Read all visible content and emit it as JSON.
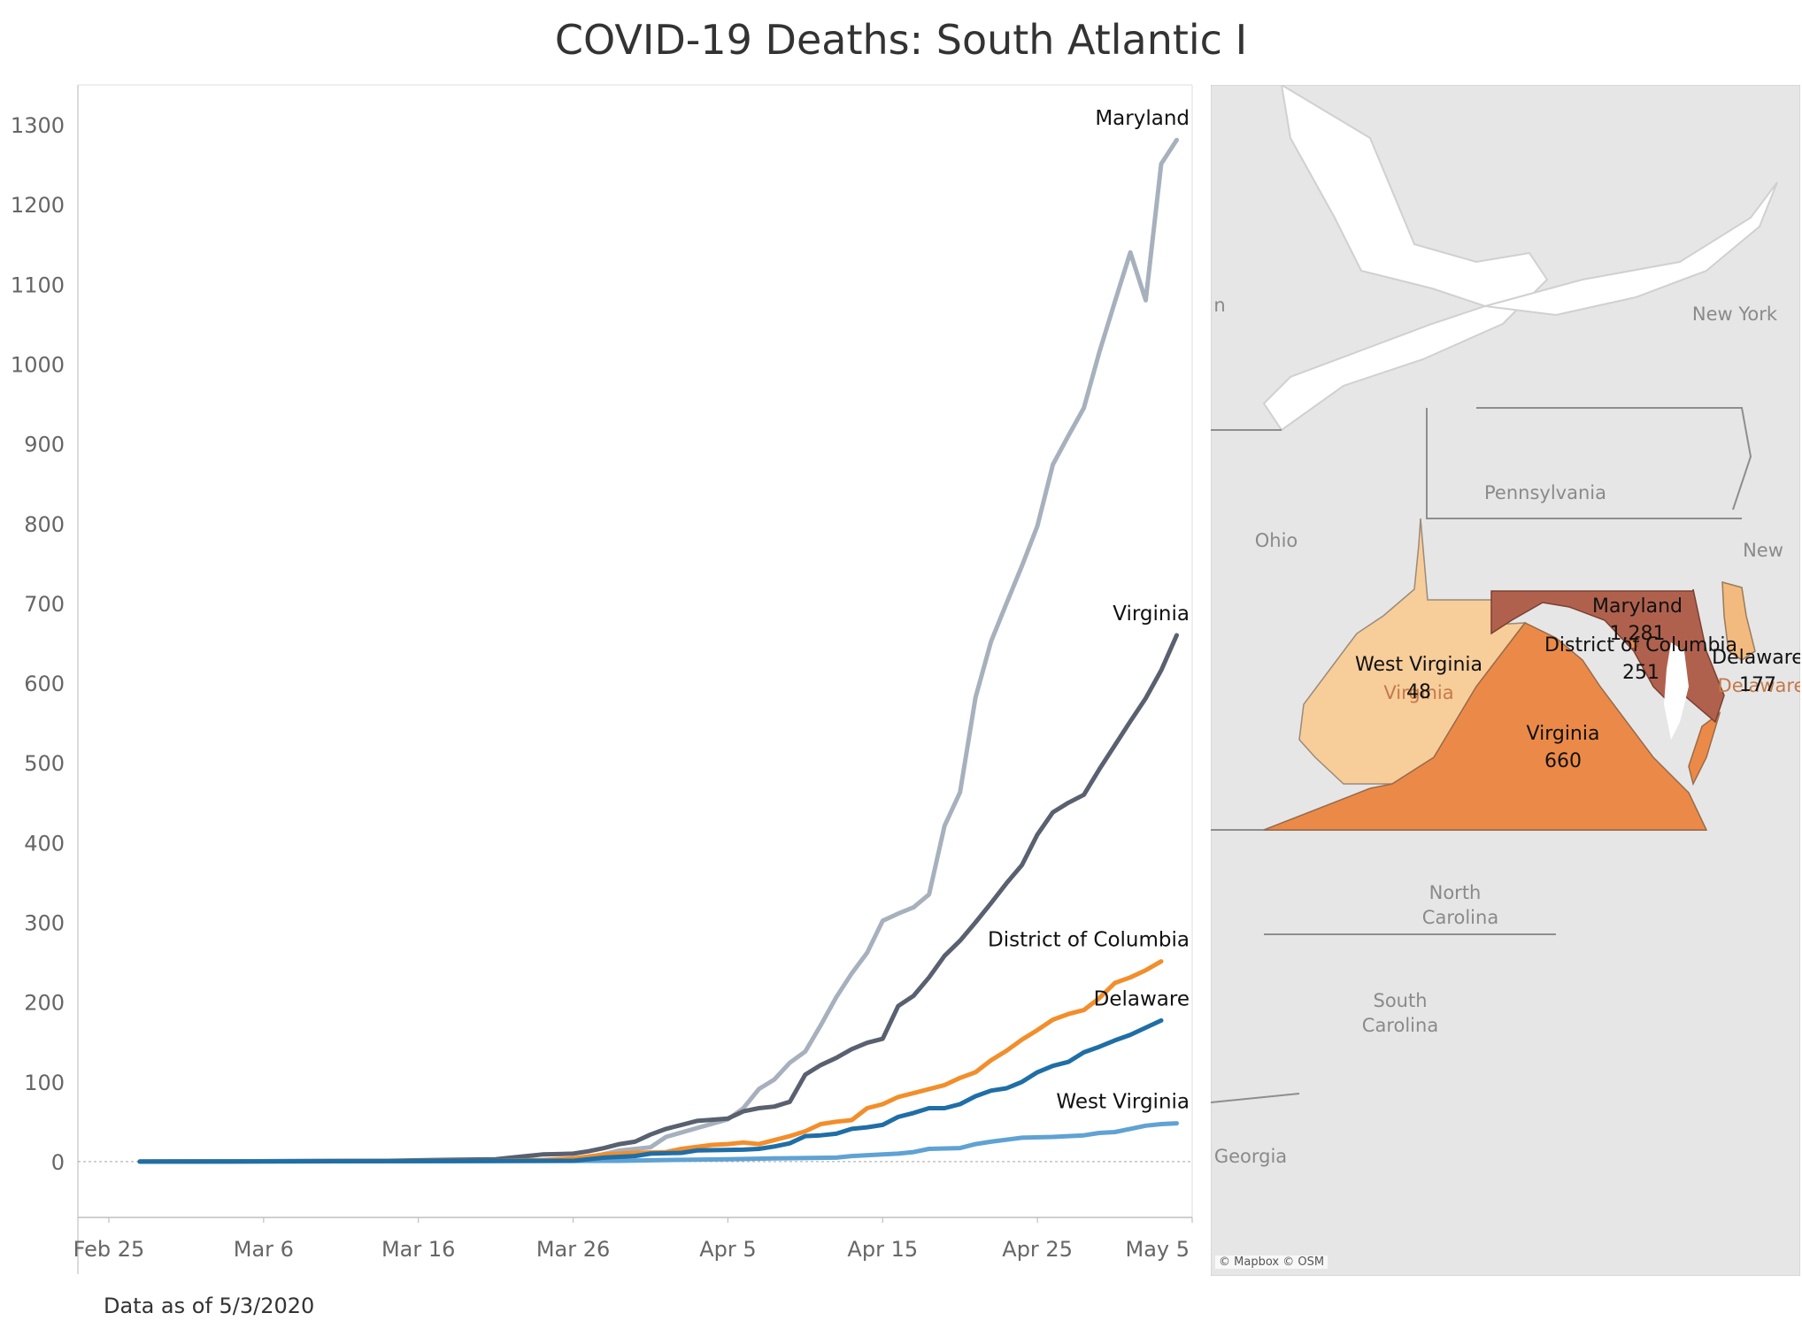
{
  "title": "COVID-19 Deaths: South Atlantic I",
  "footer": "Data as of 5/3/2020",
  "chart_data": [
    {
      "type": "line",
      "title": "",
      "xlabel": "",
      "ylabel": "",
      "x_tick_labels": [
        "Feb 25",
        "Mar 6",
        "Mar 16",
        "Mar 26",
        "Apr 5",
        "Apr 15",
        "Apr 25",
        "May 5"
      ],
      "y_ticks": [
        0,
        100,
        200,
        300,
        400,
        500,
        600,
        700,
        800,
        900,
        1000,
        1100,
        1200,
        1300
      ],
      "ylim": [
        -70,
        1350
      ],
      "xlim": [
        "2020-02-23",
        "2020-05-05"
      ],
      "zero_line": "dotted",
      "grid": false,
      "series": [
        {
          "name": "Maryland",
          "color": "#a7b0bd",
          "points": [
            [
              "2020-02-27",
              0
            ],
            [
              "2020-03-17",
              1
            ],
            [
              "2020-03-25",
              2
            ],
            [
              "2020-03-27",
              5
            ],
            [
              "2020-03-29",
              14
            ],
            [
              "2020-03-31",
              18
            ],
            [
              "2020-04-01",
              31
            ],
            [
              "2020-04-03",
              42
            ],
            [
              "2020-04-05",
              53
            ],
            [
              "2020-04-06",
              67
            ],
            [
              "2020-04-07",
              91
            ],
            [
              "2020-04-08",
              103
            ],
            [
              "2020-04-09",
              124
            ],
            [
              "2020-04-10",
              138
            ],
            [
              "2020-04-11",
              171
            ],
            [
              "2020-04-12",
              206
            ],
            [
              "2020-04-13",
              236
            ],
            [
              "2020-04-14",
              262
            ],
            [
              "2020-04-15",
              302
            ],
            [
              "2020-04-16",
              311
            ],
            [
              "2020-04-17",
              319
            ],
            [
              "2020-04-18",
              335
            ],
            [
              "2020-04-19",
              421
            ],
            [
              "2020-04-20",
              463
            ],
            [
              "2020-04-21",
              582
            ],
            [
              "2020-04-22",
              652
            ],
            [
              "2020-04-23",
              700
            ],
            [
              "2020-04-24",
              747
            ],
            [
              "2020-04-25",
              797
            ],
            [
              "2020-04-26",
              874
            ],
            [
              "2020-04-27",
              910
            ],
            [
              "2020-04-28",
              945
            ],
            [
              "2020-04-29",
              1015
            ],
            [
              "2020-04-30",
              1078
            ],
            [
              "2020-05-01",
              1140
            ],
            [
              "2020-05-02",
              1080
            ],
            [
              "2020-05-03",
              1251
            ],
            [
              "2020-05-04",
              1281
            ]
          ]
        },
        {
          "name": "Virginia",
          "color": "#59606f",
          "points": [
            [
              "2020-02-27",
              0
            ],
            [
              "2020-03-14",
              1
            ],
            [
              "2020-03-17",
              2
            ],
            [
              "2020-03-21",
              3
            ],
            [
              "2020-03-22",
              5
            ],
            [
              "2020-03-23",
              7
            ],
            [
              "2020-03-24",
              9
            ],
            [
              "2020-03-26",
              10
            ],
            [
              "2020-03-27",
              13
            ],
            [
              "2020-03-28",
              17
            ],
            [
              "2020-03-29",
              22
            ],
            [
              "2020-03-30",
              25
            ],
            [
              "2020-03-31",
              34
            ],
            [
              "2020-04-01",
              41
            ],
            [
              "2020-04-02",
              46
            ],
            [
              "2020-04-03",
              51
            ],
            [
              "2020-04-05",
              54
            ],
            [
              "2020-04-06",
              63
            ],
            [
              "2020-04-07",
              67
            ],
            [
              "2020-04-08",
              69
            ],
            [
              "2020-04-09",
              75
            ],
            [
              "2020-04-10",
              109
            ],
            [
              "2020-04-11",
              121
            ],
            [
              "2020-04-12",
              130
            ],
            [
              "2020-04-13",
              141
            ],
            [
              "2020-04-14",
              149
            ],
            [
              "2020-04-15",
              154
            ],
            [
              "2020-04-16",
              195
            ],
            [
              "2020-04-17",
              208
            ],
            [
              "2020-04-18",
              231
            ],
            [
              "2020-04-19",
              258
            ],
            [
              "2020-04-20",
              277
            ],
            [
              "2020-04-21",
              300
            ],
            [
              "2020-04-22",
              324
            ],
            [
              "2020-04-23",
              349
            ],
            [
              "2020-04-24",
              372
            ],
            [
              "2020-04-25",
              410
            ],
            [
              "2020-04-26",
              438
            ],
            [
              "2020-04-27",
              450
            ],
            [
              "2020-04-28",
              460
            ],
            [
              "2020-04-29",
              492
            ],
            [
              "2020-04-30",
              522
            ],
            [
              "2020-05-01",
              552
            ],
            [
              "2020-05-02",
              581
            ],
            [
              "2020-05-03",
              616
            ],
            [
              "2020-05-04",
              660
            ]
          ]
        },
        {
          "name": "District of Columbia",
          "color": "#f28e2b",
          "points": [
            [
              "2020-02-27",
              0
            ],
            [
              "2020-03-21",
              1
            ],
            [
              "2020-03-24",
              2
            ],
            [
              "2020-03-26",
              4
            ],
            [
              "2020-03-28",
              9
            ],
            [
              "2020-03-30",
              11
            ],
            [
              "2020-04-01",
              12
            ],
            [
              "2020-04-02",
              16
            ],
            [
              "2020-04-04",
              21
            ],
            [
              "2020-04-05",
              22
            ],
            [
              "2020-04-06",
              24
            ],
            [
              "2020-04-07",
              22
            ],
            [
              "2020-04-08",
              27
            ],
            [
              "2020-04-09",
              32
            ],
            [
              "2020-04-10",
              38
            ],
            [
              "2020-04-11",
              47
            ],
            [
              "2020-04-12",
              50
            ],
            [
              "2020-04-13",
              52
            ],
            [
              "2020-04-14",
              67
            ],
            [
              "2020-04-15",
              72
            ],
            [
              "2020-04-16",
              81
            ],
            [
              "2020-04-17",
              86
            ],
            [
              "2020-04-18",
              91
            ],
            [
              "2020-04-19",
              96
            ],
            [
              "2020-04-20",
              105
            ],
            [
              "2020-04-21",
              112
            ],
            [
              "2020-04-22",
              127
            ],
            [
              "2020-04-23",
              139
            ],
            [
              "2020-04-24",
              153
            ],
            [
              "2020-04-25",
              165
            ],
            [
              "2020-04-26",
              178
            ],
            [
              "2020-04-27",
              185
            ],
            [
              "2020-04-28",
              190
            ],
            [
              "2020-04-29",
              205
            ],
            [
              "2020-04-30",
              224
            ],
            [
              "2020-05-01",
              231
            ],
            [
              "2020-05-02",
              240
            ],
            [
              "2020-05-03",
              251
            ]
          ]
        },
        {
          "name": "Delaware",
          "color": "#1f6ea6",
          "points": [
            [
              "2020-02-27",
              0
            ],
            [
              "2020-03-26",
              1
            ],
            [
              "2020-03-28",
              5
            ],
            [
              "2020-03-30",
              7
            ],
            [
              "2020-03-31",
              10
            ],
            [
              "2020-04-02",
              11
            ],
            [
              "2020-04-03",
              14
            ],
            [
              "2020-04-06",
              15
            ],
            [
              "2020-04-07",
              16
            ],
            [
              "2020-04-08",
              19
            ],
            [
              "2020-04-09",
              23
            ],
            [
              "2020-04-10",
              32
            ],
            [
              "2020-04-11",
              33
            ],
            [
              "2020-04-12",
              35
            ],
            [
              "2020-04-13",
              41
            ],
            [
              "2020-04-14",
              43
            ],
            [
              "2020-04-15",
              46
            ],
            [
              "2020-04-16",
              56
            ],
            [
              "2020-04-17",
              61
            ],
            [
              "2020-04-18",
              67
            ],
            [
              "2020-04-19",
              67
            ],
            [
              "2020-04-20",
              72
            ],
            [
              "2020-04-21",
              82
            ],
            [
              "2020-04-22",
              89
            ],
            [
              "2020-04-23",
              92
            ],
            [
              "2020-04-24",
              100
            ],
            [
              "2020-04-25",
              112
            ],
            [
              "2020-04-26",
              120
            ],
            [
              "2020-04-27",
              125
            ],
            [
              "2020-04-28",
              137
            ],
            [
              "2020-04-29",
              144
            ],
            [
              "2020-04-30",
              152
            ],
            [
              "2020-05-01",
              159
            ],
            [
              "2020-05-02",
              168
            ],
            [
              "2020-05-03",
              177
            ]
          ]
        },
        {
          "name": "West Virginia",
          "color": "#5fa2d3",
          "points": [
            [
              "2020-02-27",
              0
            ],
            [
              "2020-03-29",
              1
            ],
            [
              "2020-04-01",
              2
            ],
            [
              "2020-04-05",
              3
            ],
            [
              "2020-04-08",
              4
            ],
            [
              "2020-04-12",
              5
            ],
            [
              "2020-04-13",
              7
            ],
            [
              "2020-04-15",
              9
            ],
            [
              "2020-04-16",
              10
            ],
            [
              "2020-04-17",
              12
            ],
            [
              "2020-04-18",
              16
            ],
            [
              "2020-04-20",
              17
            ],
            [
              "2020-04-21",
              22
            ],
            [
              "2020-04-22",
              25
            ],
            [
              "2020-04-24",
              30
            ],
            [
              "2020-04-26",
              31
            ],
            [
              "2020-04-27",
              32
            ],
            [
              "2020-04-28",
              33
            ],
            [
              "2020-04-29",
              36
            ],
            [
              "2020-04-30",
              37
            ],
            [
              "2020-05-01",
              41
            ],
            [
              "2020-05-02",
              45
            ],
            [
              "2020-05-03",
              47
            ],
            [
              "2020-05-04",
              48
            ]
          ]
        }
      ]
    },
    {
      "type": "map",
      "credit": "© Mapbox © OSM",
      "context_labels": [
        "n",
        "New York",
        "Pennsylvania",
        "Ohio",
        "New",
        "North",
        "Carolina",
        "South",
        "Carolina",
        "Georgia",
        "Virginia",
        "Delaware"
      ],
      "regions": [
        {
          "name": "Maryland",
          "value_label": "1,281",
          "value": 1281,
          "fill": "#b0614e"
        },
        {
          "name": "Virginia",
          "value_label": "660",
          "value": 660,
          "fill": "#eb8a48"
        },
        {
          "name": "District of Columbia",
          "value_label": "251",
          "value": 251,
          "fill": "#eb8a48"
        },
        {
          "name": "Delaware",
          "value_label": "177",
          "value": 177,
          "fill": "#f2ba7e"
        },
        {
          "name": "West Virginia",
          "value_label": "48",
          "value": 48,
          "fill": "#f7cd9a"
        }
      ]
    }
  ]
}
